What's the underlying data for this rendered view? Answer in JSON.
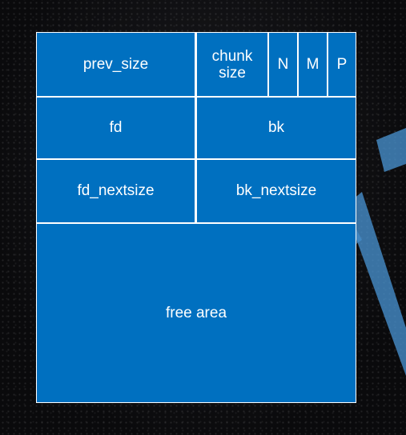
{
  "diagram": {
    "prev_size": "prev_size",
    "chunk_size_line1": "chunk",
    "chunk_size_line2": "size",
    "flag_n": "N",
    "flag_m": "M",
    "flag_p": "P",
    "fd": "fd",
    "bk": "bk",
    "fd_nextsize": "fd_nextsize",
    "bk_nextsize": "bk_nextsize",
    "free_area": "free area"
  },
  "colors": {
    "cell_fill": "#0070c0",
    "border": "#ffffff",
    "background": "#0c0c0e",
    "watermark": "#4d9bdc"
  }
}
